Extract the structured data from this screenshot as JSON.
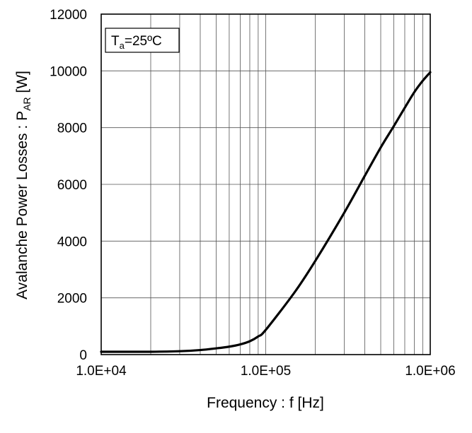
{
  "chart_data": {
    "type": "line",
    "xlabel": "Frequency : f [Hz]",
    "ylabel": {
      "main": "Avalanche Power Losses : P",
      "sub": "AR",
      "unit": " [W]"
    },
    "xscale": "log",
    "xlim": [
      10000,
      1000000
    ],
    "ylim": [
      0,
      12000
    ],
    "x_ticks": [
      10000,
      100000,
      1000000
    ],
    "x_tick_labels": [
      "1.0E+04",
      "1.0E+05",
      "1.0E+06"
    ],
    "y_ticks": [
      0,
      2000,
      4000,
      6000,
      8000,
      10000,
      12000
    ],
    "y_tick_labels": [
      "0",
      "2000",
      "4000",
      "6000",
      "8000",
      "10000",
      "12000"
    ],
    "grid": true,
    "annotation": {
      "main": "T",
      "sub": "a",
      "rest": "=25ºC"
    },
    "series": [
      {
        "x": [
          10000,
          15000,
          20000,
          30000,
          40000,
          50000,
          60000,
          70000,
          80000,
          90000,
          100000,
          150000,
          200000,
          300000,
          400000,
          500000,
          600000,
          700000,
          800000,
          900000,
          1000000
        ],
        "y": [
          100,
          100,
          100,
          120,
          160,
          220,
          280,
          360,
          470,
          640,
          870,
          2200,
          3300,
          5000,
          6300,
          7300,
          8050,
          8700,
          9250,
          9650,
          9950
        ]
      }
    ]
  }
}
